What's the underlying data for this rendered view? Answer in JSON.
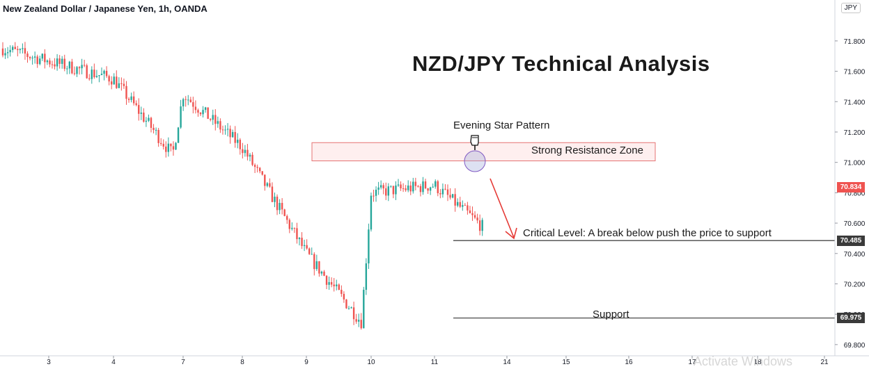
{
  "header": {
    "symbol_title": "New Zealand Dollar / Japanese Yen, 1h, OANDA",
    "currency_badge": "JPY"
  },
  "title": "NZD/JPY Technical Analysis",
  "annotations": {
    "evening_star": "Evening Star Pattern",
    "resistance": "Strong Resistance Zone",
    "critical": "Critical Level: A break below push the price to support",
    "support": "Support"
  },
  "price_tags": {
    "current": "70.834",
    "critical": "70.485",
    "support": "69.975"
  },
  "watermark": "Activate Windows",
  "colors": {
    "up": "#26a69a",
    "down": "#ef5350",
    "zone_fill": "#fde9e9",
    "zone_border": "#e57373",
    "arrow": "#e53935",
    "line": "#4a4a4a",
    "current_tag": "#ef5350",
    "level_tag": "#3a3a3a"
  },
  "chart_data": {
    "type": "candlestick",
    "y_axis": {
      "min": 69.75,
      "max": 71.98,
      "ticks": [
        "71.800",
        "71.600",
        "71.400",
        "71.200",
        "71.000",
        "70.800",
        "70.600",
        "70.400",
        "70.200",
        "70.000",
        "69.800"
      ]
    },
    "x_axis": {
      "ticks": [
        "3",
        "4",
        "7",
        "8",
        "9",
        "10",
        "11",
        "14",
        "15",
        "16",
        "17",
        "18",
        "21"
      ]
    },
    "levels": {
      "resistance_zone": [
        71.01,
        71.13
      ],
      "critical": 70.485,
      "support": 69.975
    },
    "price_path": [
      {
        "t": "3",
        "p": 71.75
      },
      {
        "t": "4",
        "p": 71.55
      },
      {
        "t": "4",
        "p": 71.05
      },
      {
        "t": "7",
        "p": 71.45
      },
      {
        "t": "8",
        "p": 71.1
      },
      {
        "t": "9",
        "p": 70.4
      },
      {
        "t": "9",
        "p": 69.95
      },
      {
        "t": "10",
        "p": 70.8
      },
      {
        "t": "11",
        "p": 70.85
      },
      {
        "t": "11",
        "p": 70.5
      },
      {
        "t": "14",
        "p": 70.9
      },
      {
        "t": "14",
        "p": 71.05
      },
      {
        "t": "14",
        "p": 70.834
      }
    ],
    "current_price": 70.834
  }
}
